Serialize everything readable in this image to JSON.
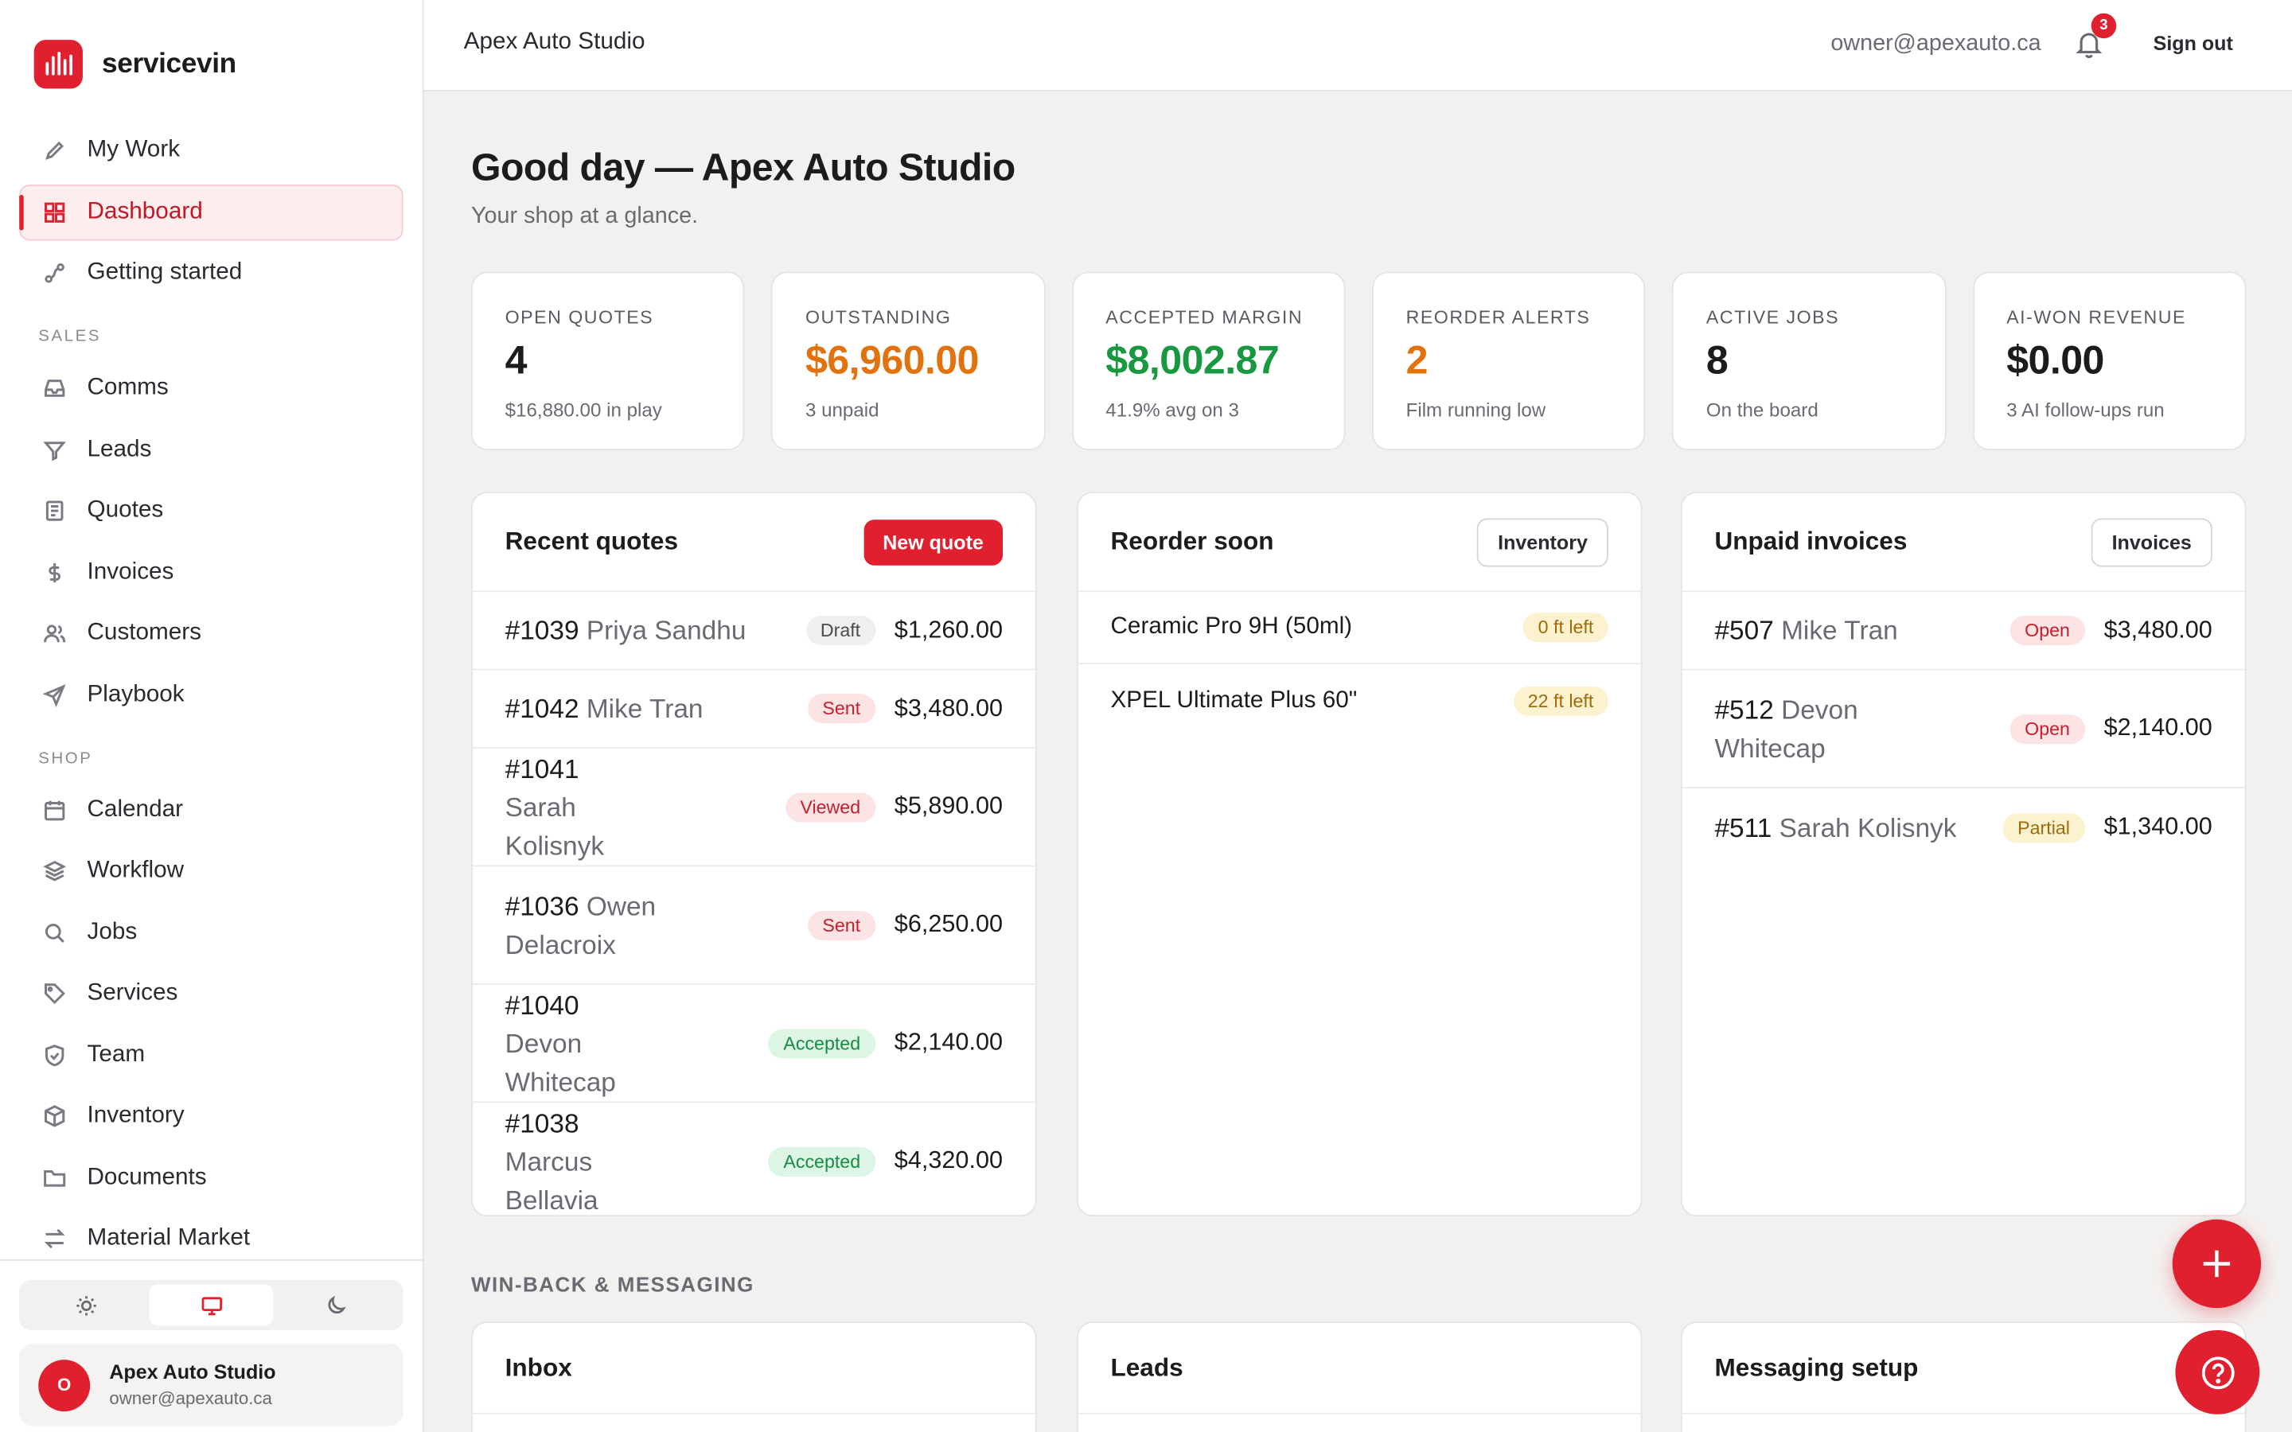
{
  "brand": {
    "name": "servicevin"
  },
  "nav": {
    "items_top": [
      {
        "label": "My Work"
      },
      {
        "label": "Dashboard"
      },
      {
        "label": "Getting started"
      }
    ],
    "section_sales": "SALES",
    "items_sales": [
      {
        "label": "Comms"
      },
      {
        "label": "Leads"
      },
      {
        "label": "Quotes"
      },
      {
        "label": "Invoices"
      },
      {
        "label": "Customers"
      },
      {
        "label": "Playbook"
      }
    ],
    "section_shop": "SHOP",
    "items_shop": [
      {
        "label": "Calendar"
      },
      {
        "label": "Workflow"
      },
      {
        "label": "Jobs"
      },
      {
        "label": "Services"
      },
      {
        "label": "Team"
      },
      {
        "label": "Inventory"
      },
      {
        "label": "Documents"
      },
      {
        "label": "Material Market"
      }
    ],
    "active": "Dashboard"
  },
  "account": {
    "initial": "O",
    "name": "Apex Auto Studio",
    "email": "owner@apexauto.ca"
  },
  "topbar": {
    "title": "Apex Auto Studio",
    "email": "owner@apexauto.ca",
    "notifications": "3",
    "sign_out": "Sign out"
  },
  "page": {
    "greeting": "Good day — Apex Auto Studio",
    "subtitle": "Your shop at a glance."
  },
  "stats": [
    {
      "label": "OPEN QUOTES",
      "value": "4",
      "sub": "$16,880.00 in play",
      "color": "#1c1c1f"
    },
    {
      "label": "OUTSTANDING",
      "value": "$6,960.00",
      "sub": "3 unpaid",
      "color": "#e2720e"
    },
    {
      "label": "ACCEPTED MARGIN",
      "value": "$8,002.87",
      "sub": "41.9% avg on 3",
      "color": "#19993f"
    },
    {
      "label": "REORDER ALERTS",
      "value": "2",
      "sub": "Film running low",
      "color": "#e2720e"
    },
    {
      "label": "ACTIVE JOBS",
      "value": "8",
      "sub": "On the board",
      "color": "#1c1c1f"
    },
    {
      "label": "AI-WON REVENUE",
      "value": "$0.00",
      "sub": "3 AI follow-ups run",
      "color": "#1c1c1f"
    }
  ],
  "recent_quotes": {
    "title": "Recent quotes",
    "button": "New quote",
    "rows": [
      {
        "num": "#1039",
        "name": "Priya Sandhu",
        "status": "Draft",
        "amount": "$1,260.00"
      },
      {
        "num": "#1042",
        "name": "Mike Tran",
        "status": "Sent",
        "amount": "$3,480.00"
      },
      {
        "num": "#1041",
        "name": "Sarah Kolisnyk",
        "status": "Viewed",
        "amount": "$5,890.00"
      },
      {
        "num": "#1036",
        "name": "Owen Delacroix",
        "status": "Sent",
        "amount": "$6,250.00"
      },
      {
        "num": "#1040",
        "name": "Devon Whitecap",
        "status": "Accepted",
        "amount": "$2,140.00"
      },
      {
        "num": "#1038",
        "name": "Marcus Bellavia",
        "status": "Accepted",
        "amount": "$4,320.00"
      }
    ]
  },
  "reorder": {
    "title": "Reorder soon",
    "button": "Inventory",
    "rows": [
      {
        "item": "Ceramic Pro 9H (50ml)",
        "left": "0 ft left"
      },
      {
        "item": "XPEL Ultimate Plus 60\"",
        "left": "22 ft left"
      }
    ]
  },
  "unpaid": {
    "title": "Unpaid invoices",
    "button": "Invoices",
    "rows": [
      {
        "num": "#507",
        "name": "Mike Tran",
        "status": "Open",
        "amount": "$3,480.00"
      },
      {
        "num": "#512",
        "name": "Devon Whitecap",
        "status": "Open",
        "amount": "$2,140.00"
      },
      {
        "num": "#511",
        "name": "Sarah Kolisnyk",
        "status": "Partial",
        "amount": "$1,340.00"
      }
    ]
  },
  "winback": {
    "section": "WIN-BACK & MESSAGING",
    "panels": [
      {
        "title": "Inbox"
      },
      {
        "title": "Leads"
      },
      {
        "title": "Messaging setup"
      }
    ]
  },
  "colors": {
    "accent": "#e0202e",
    "background": "#f2f1ef"
  }
}
